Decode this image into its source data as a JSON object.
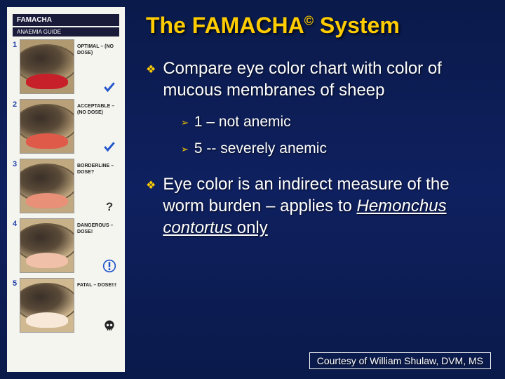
{
  "title_pre": "The FAMACHA",
  "title_sup": "©",
  "title_post": " System",
  "chart": {
    "header": "FAMACHA",
    "subheader": "ANAEMIA GUIDE",
    "rows": [
      {
        "num": "1",
        "label": "OPTIMAL – (NO DOSE)",
        "membrane_color": "#c8202a",
        "eye_bg": "#b09870",
        "icon": "check",
        "icon_color": "#2255cc"
      },
      {
        "num": "2",
        "label": "ACCEPTABLE – (NO DOSE)",
        "membrane_color": "#e05a4a",
        "eye_bg": "#baa078",
        "icon": "check",
        "icon_color": "#2255cc"
      },
      {
        "num": "3",
        "label": "BORDERLINE – DOSE?",
        "membrane_color": "#e89078",
        "eye_bg": "#c0a880",
        "icon": "question",
        "icon_color": "#333333"
      },
      {
        "num": "4",
        "label": "DANGEROUS – DOSE!",
        "membrane_color": "#f0c0a8",
        "eye_bg": "#c8b088",
        "icon": "exclaim",
        "icon_color": "#2255cc"
      },
      {
        "num": "5",
        "label": "FATAL – DOSE!!!",
        "membrane_color": "#f8e8d8",
        "eye_bg": "#d0b890",
        "icon": "skull",
        "icon_color": "#222222"
      }
    ]
  },
  "bullets": [
    {
      "text": "Compare eye color chart with color of mucous membranes of sheep"
    }
  ],
  "sub_bullets": [
    {
      "text": "1 – not anemic"
    },
    {
      "text": "5 -- severely anemic"
    }
  ],
  "bullet2_pre": "Eye color is an indirect measure of the worm burden – applies to ",
  "bullet2_italic": "Hemonchus contortus",
  "bullet2_post": " only",
  "credit": "Courtesy of William Shulaw, DVM, MS",
  "colors": {
    "background": "#0a1a4a",
    "title": "#ffcc00",
    "bullet_icon": "#ffcc00",
    "text": "#ffffff"
  },
  "fonts": {
    "title_size": 32,
    "body_size": 24,
    "sub_size": 21,
    "credit_size": 14
  }
}
